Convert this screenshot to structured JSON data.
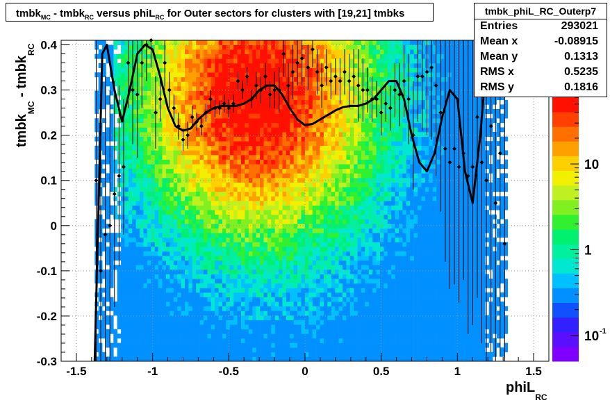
{
  "title": {
    "parts": [
      {
        "text": "tmbk",
        "sub": "MC"
      },
      {
        "text": " - tmbk",
        "sub": "RC"
      },
      {
        "text": " versus phiL",
        "sub": "RC"
      },
      {
        "text": " for Outer sectors for clusters with [19,21] tmbks",
        "sub": ""
      }
    ]
  },
  "stats": {
    "name": "tmbk_phiL_RC_Outerp7",
    "rows": [
      {
        "label": "Entries",
        "value": "293021"
      },
      {
        "label": "Mean x",
        "value": "-0.08915"
      },
      {
        "label": "Mean y",
        "value": "0.1313"
      },
      {
        "label": "RMS x",
        "value": "0.5235"
      },
      {
        "label": "RMS y",
        "value": "0.1816"
      }
    ]
  },
  "colors": {
    "palette": [
      "#7f00ff",
      "#5a10ff",
      "#3320ff",
      "#1050ff",
      "#0090ff",
      "#00c0ff",
      "#00e8d0",
      "#00f0a0",
      "#00f070",
      "#30f030",
      "#80f020",
      "#c0f020",
      "#f0f000",
      "#ffd000",
      "#ffa000",
      "#ff7000",
      "#ff4000",
      "#ff1000"
    ],
    "profile": "#000000",
    "grid": "#999999"
  },
  "chart_data": {
    "type": "heatmap",
    "title": "tmbk_MC - tmbk_RC versus phiL_RC for Outer sectors for clusters with [19,21] tmbks",
    "xlabel": "phiL_RC",
    "ylabel": "tmbk_MC - tmbk_RC",
    "xlim": [
      -1.6,
      1.6
    ],
    "ylim": [
      -0.3,
      0.41
    ],
    "xticks": [
      "-1.5",
      "-1",
      "-0.5",
      "0",
      "0.5",
      "1",
      "1.5"
    ],
    "yticks": [
      "-0.3",
      "-0.2",
      "-0.1",
      "0",
      "0.1",
      "0.2",
      "0.3",
      "0.4"
    ],
    "xtick_values": [
      -1.5,
      -1,
      -0.5,
      0,
      0.5,
      1,
      1.5
    ],
    "ytick_values": [
      -0.3,
      -0.2,
      -0.1,
      0,
      0.1,
      0.2,
      0.3,
      0.4
    ],
    "grid": true,
    "log_z": true,
    "colorbar": {
      "ticks": [
        "10",
        "1",
        "10^-1"
      ],
      "tick_values": [
        10,
        1,
        0.1
      ],
      "zlim": [
        0.05,
        60
      ]
    },
    "density_center": {
      "x": -0.35,
      "y": 0.28
    },
    "profile_curve": {
      "x": [
        -1.38,
        -1.35,
        -1.33,
        -1.3,
        -1.25,
        -1.2,
        -1.15,
        -1.1,
        -1.05,
        -1.0,
        -0.95,
        -0.9,
        -0.85,
        -0.8,
        -0.75,
        -0.7,
        -0.65,
        -0.6,
        -0.55,
        -0.5,
        -0.45,
        -0.4,
        -0.35,
        -0.3,
        -0.25,
        -0.2,
        -0.15,
        -0.1,
        -0.05,
        0.0,
        0.05,
        0.1,
        0.15,
        0.2,
        0.25,
        0.3,
        0.35,
        0.4,
        0.45,
        0.5,
        0.55,
        0.6,
        0.65,
        0.7,
        0.75,
        0.8,
        0.85,
        0.9,
        0.95,
        1.0,
        1.05,
        1.1,
        1.15,
        1.2,
        1.25,
        1.3,
        1.33,
        1.36
      ],
      "y": [
        -0.3,
        0.1,
        0.38,
        0.4,
        0.3,
        0.23,
        0.3,
        0.38,
        0.4,
        0.39,
        0.33,
        0.26,
        0.22,
        0.21,
        0.215,
        0.235,
        0.25,
        0.26,
        0.265,
        0.265,
        0.265,
        0.27,
        0.28,
        0.3,
        0.31,
        0.31,
        0.29,
        0.26,
        0.235,
        0.222,
        0.225,
        0.235,
        0.245,
        0.255,
        0.262,
        0.265,
        0.265,
        0.27,
        0.28,
        0.3,
        0.32,
        0.32,
        0.28,
        0.2,
        0.14,
        0.12,
        0.16,
        0.24,
        0.3,
        0.28,
        0.12,
        0.05,
        0.2,
        0.4
      ]
    },
    "profile_points": {
      "x": [
        -1.37,
        -1.34,
        -1.31,
        -1.28,
        -1.25,
        -1.22,
        -1.19,
        -1.16,
        -1.13,
        -1.1,
        -1.07,
        -1.04,
        -1.01,
        -0.98,
        -0.95,
        -0.92,
        -0.89,
        -0.86,
        -0.83,
        -0.8,
        -0.77,
        -0.74,
        -0.71,
        -0.68,
        -0.65,
        -0.62,
        -0.59,
        -0.56,
        -0.53,
        -0.5,
        -0.47,
        -0.44,
        -0.41,
        -0.38,
        -0.35,
        -0.32,
        -0.29,
        -0.26,
        -0.23,
        -0.2,
        -0.17,
        -0.14,
        -0.11,
        -0.08,
        -0.05,
        -0.02,
        0.02,
        0.05,
        0.08,
        0.11,
        0.14,
        0.17,
        0.2,
        0.23,
        0.26,
        0.29,
        0.32,
        0.35,
        0.38,
        0.41,
        0.44,
        0.47,
        0.5,
        0.53,
        0.56,
        0.59,
        0.62,
        0.65,
        0.68,
        0.71,
        0.74,
        0.77,
        0.8,
        0.83,
        0.86,
        0.89,
        0.92,
        0.95,
        0.98,
        1.01,
        1.04,
        1.07,
        1.1,
        1.13,
        1.16,
        1.19,
        1.22,
        1.25,
        1.28,
        1.31
      ],
      "y": [
        0.1,
        -0.1,
        -0.02,
        0.0,
        0.07,
        0.11,
        0.13,
        0.36,
        0.3,
        0.29,
        0.36,
        0.4,
        0.41,
        0.25,
        0.28,
        0.36,
        0.3,
        0.26,
        0.22,
        0.19,
        0.2,
        0.24,
        0.23,
        0.22,
        0.25,
        0.28,
        0.26,
        0.26,
        0.27,
        0.26,
        0.27,
        0.32,
        0.3,
        0.33,
        0.28,
        0.31,
        0.3,
        0.33,
        0.29,
        0.3,
        0.3,
        0.38,
        0.31,
        0.34,
        0.36,
        0.37,
        0.35,
        0.39,
        0.34,
        0.31,
        0.35,
        0.32,
        0.33,
        0.32,
        0.34,
        0.32,
        0.33,
        0.31,
        0.3,
        0.3,
        0.28,
        0.28,
        0.25,
        0.27,
        0.26,
        0.3,
        0.29,
        0.32,
        0.28,
        0.2,
        0.33,
        0.33,
        0.34,
        0.35,
        0.31,
        0.25,
        0.17,
        0.14,
        0.17,
        0.13,
        0.16,
        0.11,
        0.13,
        0.24,
        0.14,
        0.1,
        0.22,
        0.05,
        0.16,
        -0.04
      ],
      "yerr": [
        0.5,
        0.3,
        0.35,
        0.3,
        0.25,
        0.2,
        0.15,
        0.1,
        0.12,
        0.14,
        0.1,
        0.08,
        0.06,
        0.08,
        0.05,
        0.06,
        0.04,
        0.03,
        0.03,
        0.025,
        0.03,
        0.025,
        0.02,
        0.02,
        0.02,
        0.02,
        0.02,
        0.015,
        0.02,
        0.02,
        0.02,
        0.02,
        0.02,
        0.02,
        0.02,
        0.03,
        0.03,
        0.03,
        0.03,
        0.04,
        0.05,
        0.05,
        0.05,
        0.06,
        0.05,
        0.06,
        0.05,
        0.04,
        0.05,
        0.05,
        0.04,
        0.04,
        0.04,
        0.05,
        0.05,
        0.06,
        0.06,
        0.08,
        0.07,
        0.05,
        0.05,
        0.04,
        0.05,
        0.04,
        0.05,
        0.06,
        0.07,
        0.08,
        0.1,
        0.12,
        0.1,
        0.12,
        0.14,
        0.16,
        0.2,
        0.22,
        0.25,
        0.28,
        0.3,
        0.3,
        0.28,
        0.35,
        0.35,
        0.4,
        0.4,
        0.45,
        0.5,
        0.5,
        0.45,
        0.5
      ]
    }
  }
}
